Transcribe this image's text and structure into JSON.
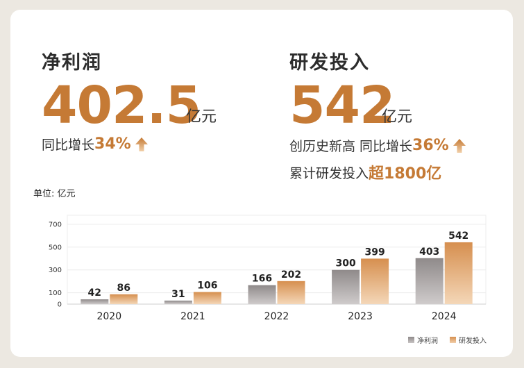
{
  "net_profit": {
    "title": "净利润",
    "value": "402.5",
    "unit": "亿元",
    "growth_label": "同比增长",
    "growth_value": "34%"
  },
  "rnd": {
    "title": "研发投入",
    "value": "542",
    "unit": "亿元",
    "record_label": "创历史新高 同比增长",
    "growth_value": "36%",
    "cumulative_label": "累计研发投入",
    "cumulative_value": "超1800亿"
  },
  "colors": {
    "accent": "#c57a35",
    "net_profit_bar": "#9e9a9a",
    "rnd_bar": "#e0a46e"
  },
  "chart_data": {
    "type": "bar",
    "unit_label": "单位: 亿元",
    "categories": [
      "2020",
      "2021",
      "2022",
      "2023",
      "2024"
    ],
    "series": [
      {
        "name": "净利润",
        "values": [
          42,
          31,
          166,
          300,
          403
        ]
      },
      {
        "name": "研发投入",
        "values": [
          86,
          106,
          202,
          399,
          542
        ]
      }
    ],
    "ylim": [
      0,
      700
    ],
    "yticks": [
      "0",
      "100",
      "300",
      "500",
      "700"
    ],
    "ytick_values": [
      0,
      100,
      300,
      500,
      700
    ],
    "grid": true,
    "legend": "bottom-right"
  }
}
